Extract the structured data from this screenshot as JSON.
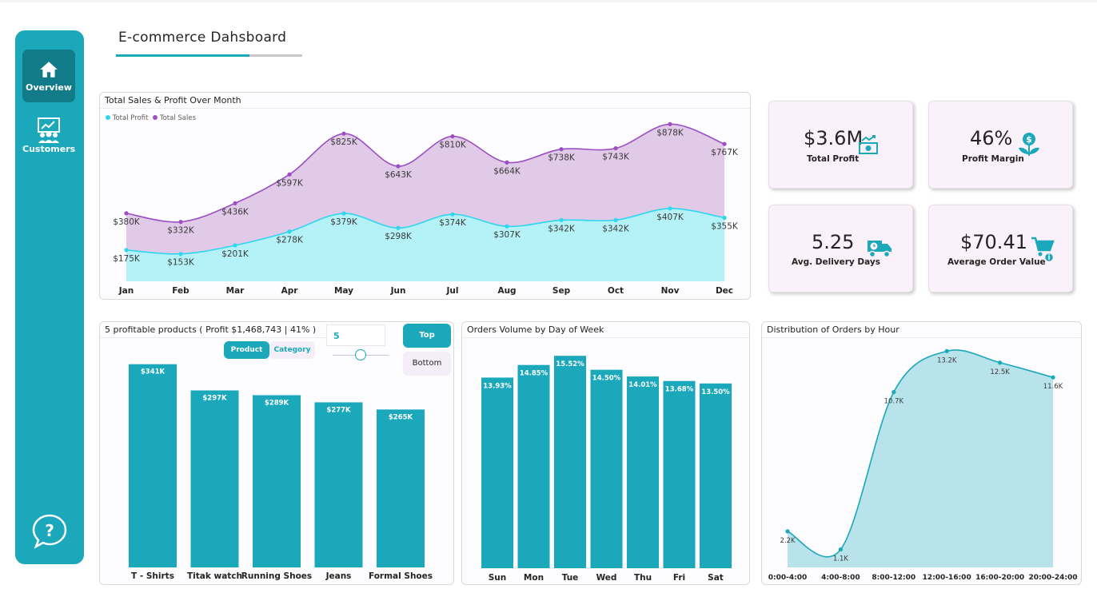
{
  "dashboard_title": "E-commerce Dahsboard",
  "colors": {
    "accent": "#1ba8bb",
    "accent_dark": "#127b89",
    "sales": "#9b4fc0",
    "sales_fill": "#e1c9e8",
    "profit": "#2fd6ec",
    "profit_fill": "#b5f2f8",
    "kpi_bg": "#fbf1fb"
  },
  "nav": {
    "overview_label": "Overview",
    "customers_label": "Customers",
    "overview_icon": "home-icon",
    "customers_icon": "customers-icon",
    "help_icon": "help-bubble-icon"
  },
  "kpis": {
    "profit": {
      "value": "$3.6M",
      "label": "Total Profit",
      "icon": "money-icon"
    },
    "margin": {
      "value": "46%",
      "label": "Profit Margin",
      "icon": "money-plant-icon"
    },
    "delivery": {
      "value": "5.25",
      "label": "Avg. Delivery Days",
      "icon": "delivery-truck-icon"
    },
    "aov": {
      "value": "$70.41",
      "label": "Average Order Value",
      "icon": "cart-icon"
    }
  },
  "products_panel": {
    "title": "5 profitable products ( Profit $1,468,743 | 41% )",
    "seg_product": "Product",
    "seg_category": "Category",
    "top_n": "5",
    "top_label": "Top",
    "bottom_label": "Bottom",
    "slider_level": 0.5
  },
  "chart_data": [
    {
      "type": "area",
      "title": "Total Sales & Profit Over Month",
      "legend": [
        "Total Profit",
        "Total Sales"
      ],
      "categories": [
        "Jan",
        "Feb",
        "Mar",
        "Apr",
        "May",
        "Jun",
        "Jul",
        "Aug",
        "Sep",
        "Oct",
        "Nov",
        "Dec"
      ],
      "series": [
        {
          "name": "Total Sales",
          "values": [
            380,
            332,
            436,
            597,
            825,
            643,
            810,
            664,
            738,
            743,
            878,
            767
          ],
          "labels": [
            "$380K",
            "$332K",
            "$436K",
            "$597K",
            "$825K",
            "$643K",
            "$810K",
            "$664K",
            "$738K",
            "$743K",
            "$878K",
            "$767K"
          ]
        },
        {
          "name": "Total Profit",
          "values": [
            175,
            153,
            201,
            278,
            379,
            298,
            374,
            307,
            342,
            342,
            407,
            355
          ],
          "labels": [
            "$175K",
            "$153K",
            "$201K",
            "$278K",
            "$379K",
            "$298K",
            "$374K",
            "$307K",
            "$342K",
            "$342K",
            "$407K",
            "$355K"
          ]
        }
      ],
      "ylim": [
        0,
        1000
      ]
    },
    {
      "type": "bar",
      "title": "5 profitable products ( Profit $1,468,743 | 41% )",
      "categories": [
        "T - Shirts",
        "Titak watch",
        "Running Shoes",
        "Jeans",
        "Formal Shoes"
      ],
      "values": [
        341,
        297,
        289,
        277,
        265
      ],
      "labels": [
        "$341K",
        "$297K",
        "$289K",
        "$277K",
        "$265K"
      ],
      "ylim": [
        0,
        350
      ]
    },
    {
      "type": "bar",
      "title": "Orders Volume by Day of Week",
      "categories": [
        "Sun",
        "Mon",
        "Tue",
        "Wed",
        "Thu",
        "Fri",
        "Sat"
      ],
      "values": [
        13.93,
        14.85,
        15.52,
        14.5,
        14.01,
        13.68,
        13.5
      ],
      "labels": [
        "13.93%",
        "14.85%",
        "15.52%",
        "14.50%",
        "14.01%",
        "13.68%",
        "13.50%"
      ],
      "ylim": [
        0,
        16
      ]
    },
    {
      "type": "area",
      "title": "Distribution of Orders by Hour",
      "categories": [
        "0:00-4:00",
        "4:00-8:00",
        "8:00-12:00",
        "12:00-16:00",
        "16:00-20:00",
        "20:00-24:00"
      ],
      "values": [
        2.2,
        1.1,
        10.7,
        13.2,
        12.5,
        11.6
      ],
      "labels": [
        "2.2K",
        "1.1K",
        "10.7K",
        "13.2K",
        "12.5K",
        "11.6K"
      ],
      "ylim": [
        0,
        14
      ]
    }
  ]
}
